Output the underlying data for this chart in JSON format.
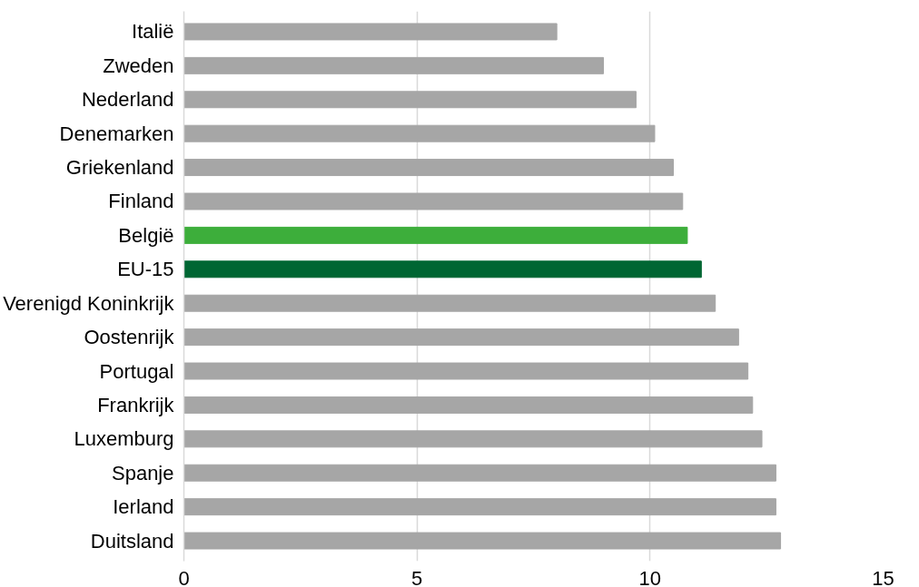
{
  "chart_data": {
    "type": "bar",
    "orientation": "horizontal",
    "categories": [
      "Italië",
      "Zweden",
      "Nederland",
      "Denemarken",
      "Griekenland",
      "Finland",
      "België",
      "EU-15",
      "Verenigd Koninkrijk",
      "Oostenrijk",
      "Portugal",
      "Frankrijk",
      "Luxemburg",
      "Spanje",
      "Ierland",
      "Duitsland"
    ],
    "values": [
      8.0,
      9.0,
      9.7,
      10.1,
      10.5,
      10.7,
      10.8,
      11.1,
      11.4,
      11.9,
      12.1,
      12.2,
      12.4,
      12.7,
      12.7,
      12.8
    ],
    "colors": [
      "#a6a6a6",
      "#a6a6a6",
      "#a6a6a6",
      "#a6a6a6",
      "#a6a6a6",
      "#a6a6a6",
      "#3dae3b",
      "#006633",
      "#a6a6a6",
      "#a6a6a6",
      "#a6a6a6",
      "#a6a6a6",
      "#a6a6a6",
      "#a6a6a6",
      "#a6a6a6",
      "#a6a6a6"
    ],
    "xlim": [
      0,
      15
    ],
    "xticks": [
      0,
      5,
      10,
      15
    ],
    "grid": "x"
  }
}
